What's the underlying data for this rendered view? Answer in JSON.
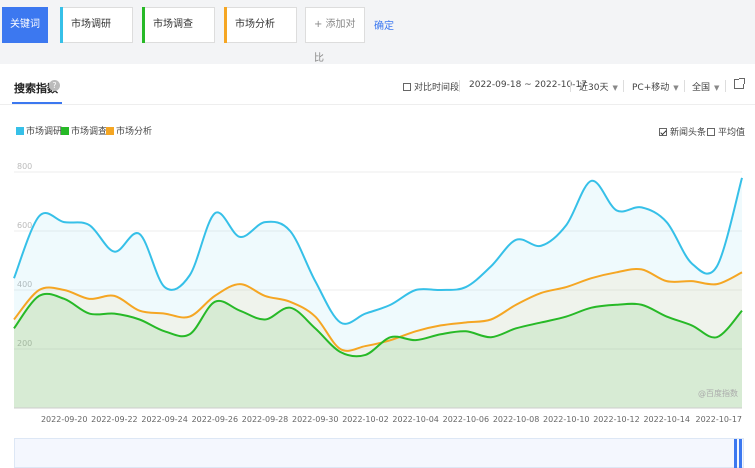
{
  "keywords": {
    "active_label": "关键词",
    "items": [
      {
        "label": "市场调研",
        "color": "#36c0e8"
      },
      {
        "label": "市场调查",
        "color": "#27b927"
      },
      {
        "label": "市场分析",
        "color": "#f5a623"
      }
    ],
    "add_label": "+ 添加对比",
    "confirm_label": "确定"
  },
  "panel": {
    "tab_title": "搜索指数",
    "help_icon": "?",
    "compare_period_label": "对比时间段",
    "date_range": "2022-09-18 ~ 2022-10-17",
    "period_select": "近30天",
    "device_select": "PC+移动",
    "region_select": "全国",
    "news_label": "新闻头条",
    "news_checked": true,
    "avg_label": "平均值",
    "avg_checked": false,
    "watermark": "@百度指数"
  },
  "chart_data": {
    "type": "area",
    "x": [
      "2022-09-18",
      "2022-09-19",
      "2022-09-20",
      "2022-09-21",
      "2022-09-22",
      "2022-09-23",
      "2022-09-24",
      "2022-09-25",
      "2022-09-26",
      "2022-09-27",
      "2022-09-28",
      "2022-09-29",
      "2022-09-30",
      "2022-10-01",
      "2022-10-02",
      "2022-10-03",
      "2022-10-04",
      "2022-10-05",
      "2022-10-06",
      "2022-10-07",
      "2022-10-08",
      "2022-10-09",
      "2022-10-10",
      "2022-10-11",
      "2022-10-12",
      "2022-10-13",
      "2022-10-14",
      "2022-10-15",
      "2022-10-16",
      "2022-10-17"
    ],
    "tick_labels": [
      "2022-09-20",
      "2022-09-22",
      "2022-09-24",
      "2022-09-26",
      "2022-09-28",
      "2022-09-30",
      "2022-10-02",
      "2022-10-04",
      "2022-10-06",
      "2022-10-08",
      "2022-10-10",
      "2022-10-12",
      "2022-10-14",
      "2022-10-17"
    ],
    "y_ticks": [
      200,
      400,
      600,
      800
    ],
    "ylim": [
      0,
      800
    ],
    "series": [
      {
        "name": "市场调研",
        "color": "#36c0e8",
        "values": [
          440,
          650,
          630,
          620,
          530,
          590,
          410,
          450,
          660,
          580,
          630,
          600,
          430,
          290,
          320,
          350,
          400,
          400,
          410,
          480,
          570,
          550,
          620,
          770,
          670,
          680,
          630,
          490,
          480,
          780
        ]
      },
      {
        "name": "市场调查",
        "color": "#27b927",
        "values": [
          270,
          380,
          370,
          320,
          320,
          300,
          260,
          250,
          360,
          330,
          300,
          340,
          270,
          190,
          180,
          240,
          230,
          250,
          260,
          240,
          270,
          290,
          310,
          340,
          350,
          350,
          310,
          280,
          240,
          330
        ]
      },
      {
        "name": "市场分析",
        "color": "#f5a623",
        "values": [
          300,
          400,
          400,
          370,
          380,
          330,
          320,
          310,
          380,
          420,
          380,
          360,
          310,
          200,
          210,
          230,
          260,
          280,
          290,
          300,
          350,
          390,
          410,
          440,
          460,
          470,
          430,
          430,
          420,
          460
        ]
      }
    ]
  }
}
